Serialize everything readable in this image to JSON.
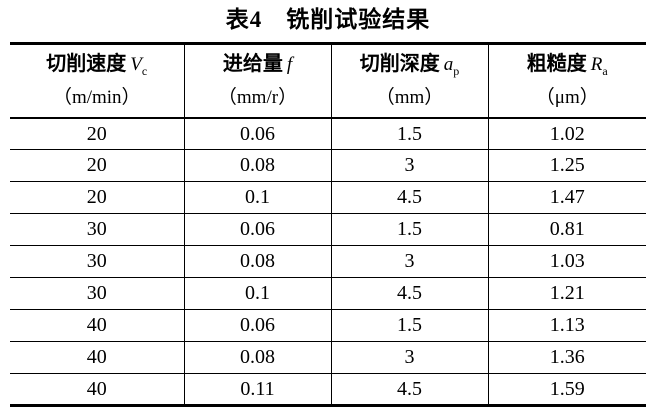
{
  "title": "表4　铣削试验结果",
  "table": {
    "columns": [
      {
        "name_cn": "切削速度",
        "symbol": "V",
        "symbol_sub": "c",
        "unit": "（m/min）"
      },
      {
        "name_cn": "进给量",
        "symbol": "f",
        "symbol_sub": "",
        "unit": "（mm/r）"
      },
      {
        "name_cn": "切削深度",
        "symbol": "a",
        "symbol_sub": "p",
        "unit": "（mm）"
      },
      {
        "name_cn": "粗糙度",
        "symbol": "R",
        "symbol_sub": "a",
        "unit": "（μm）"
      }
    ],
    "rows": [
      [
        "20",
        "0.06",
        "1.5",
        "1.02"
      ],
      [
        "20",
        "0.08",
        "3",
        "1.25"
      ],
      [
        "20",
        "0.1",
        "4.5",
        "1.47"
      ],
      [
        "30",
        "0.06",
        "1.5",
        "0.81"
      ],
      [
        "30",
        "0.08",
        "3",
        "1.03"
      ],
      [
        "30",
        "0.1",
        "4.5",
        "1.21"
      ],
      [
        "40",
        "0.06",
        "1.5",
        "1.13"
      ],
      [
        "40",
        "0.08",
        "3",
        "1.36"
      ],
      [
        "40",
        "0.11",
        "4.5",
        "1.59"
      ]
    ]
  },
  "colors": {
    "text": "#000000",
    "background": "#ffffff",
    "border": "#000000"
  }
}
